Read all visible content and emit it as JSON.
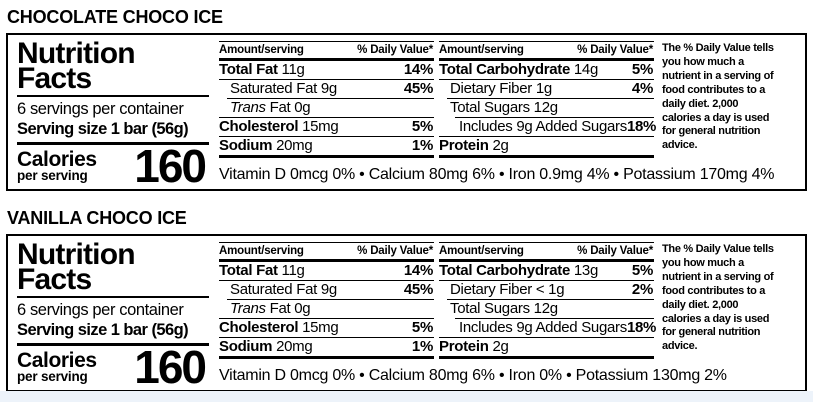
{
  "page": {
    "background": "#ffffff",
    "bottom_strip_color": "#edf3fa"
  },
  "labels": [
    {
      "title": "CHOCOLATE CHOCO ICE",
      "brand_lines": [
        "Nutrition",
        "Facts"
      ],
      "servings": "6 servings per container",
      "serving_size": "Serving size 1 bar (56g)",
      "calories_label": "Calories",
      "calories_sub": "per serving",
      "calories_value": "160",
      "columns": [
        {
          "header_left": "Amount/serving",
          "header_right": "% Daily Value*",
          "rows": [
            {
              "name": "Total Fat",
              "amount": "11g",
              "dv": "14%",
              "bold": true
            },
            {
              "name": "Saturated Fat",
              "amount": "9g",
              "dv": "45%",
              "indent": 1,
              "rule": 0
            },
            {
              "name": "Trans Fat",
              "amount": "0g",
              "italic_prefix": "Trans",
              "indent": 1,
              "rule": 1
            },
            {
              "name": "Cholesterol",
              "amount": "15mg",
              "dv": "5%",
              "bold": true
            },
            {
              "name": "Sodium",
              "amount": "20mg",
              "dv": "1%",
              "bold": true
            }
          ]
        },
        {
          "header_left": "Amount/serving",
          "header_right": "% Daily Value*",
          "rows": [
            {
              "name": "Total Carbohydrate",
              "amount": "14g",
              "dv": "5%",
              "bold": true
            },
            {
              "name": "Dietary Fiber",
              "amount": "1g",
              "dv": "4%",
              "indent": 1,
              "rule": 0
            },
            {
              "name": "Total Sugars",
              "amount": "12g",
              "indent": 1,
              "rule": 1
            },
            {
              "name": "Includes 9g Added Sugars",
              "dv": "18%",
              "indent": 2,
              "rule": 2
            },
            {
              "name": "Protein",
              "amount": "2g",
              "bold": true
            }
          ]
        }
      ],
      "footnote_lines": [
        "The % Daily Value tells",
        "you how much a",
        "nutrient in a serving of",
        "food contributes to a",
        "daily diet. 2,000",
        "calories a day is used",
        "for general nutrition",
        "advice."
      ],
      "micronutrients": "Vitamin D 0mcg 0% • Calcium 80mg 6% • Iron 0.9mg 4% • Potassium 170mg 4%"
    },
    {
      "title": "VANILLA CHOCO ICE",
      "brand_lines": [
        "Nutrition",
        "Facts"
      ],
      "servings": "6 servings per container",
      "serving_size": "Serving size 1 bar (56g)",
      "calories_label": "Calories",
      "calories_sub": "per serving",
      "calories_value": "160",
      "columns": [
        {
          "header_left": "Amount/serving",
          "header_right": "% Daily Value*",
          "rows": [
            {
              "name": "Total Fat",
              "amount": "11g",
              "dv": "14%",
              "bold": true
            },
            {
              "name": "Saturated Fat",
              "amount": "9g",
              "dv": "45%",
              "indent": 1,
              "rule": 0
            },
            {
              "name": "Trans Fat",
              "amount": "0g",
              "italic_prefix": "Trans",
              "indent": 1,
              "rule": 1
            },
            {
              "name": "Cholesterol",
              "amount": "15mg",
              "dv": "5%",
              "bold": true
            },
            {
              "name": "Sodium",
              "amount": "20mg",
              "dv": "1%",
              "bold": true
            }
          ]
        },
        {
          "header_left": "Amount/serving",
          "header_right": "% Daily Value*",
          "rows": [
            {
              "name": "Total Carbohydrate",
              "amount": "13g",
              "dv": "5%",
              "bold": true
            },
            {
              "name": "Dietary Fiber",
              "amount": "< 1g",
              "dv": "2%",
              "indent": 1,
              "rule": 0
            },
            {
              "name": "Total Sugars",
              "amount": "12g",
              "indent": 1,
              "rule": 1
            },
            {
              "name": "Includes 9g Added Sugars",
              "dv": "18%",
              "indent": 2,
              "rule": 2
            },
            {
              "name": "Protein",
              "amount": "2g",
              "bold": true
            }
          ]
        }
      ],
      "footnote_lines": [
        "The % Daily Value tells",
        "you how much a",
        "nutrient in a serving of",
        "food contributes to a",
        "daily diet. 2,000",
        "calories a day is used",
        "for general nutrition",
        "advice."
      ],
      "micronutrients": "Vitamin D 0mcg 0% • Calcium 80mg 6% • Iron 0% • Potassium 130mg 2%"
    }
  ]
}
